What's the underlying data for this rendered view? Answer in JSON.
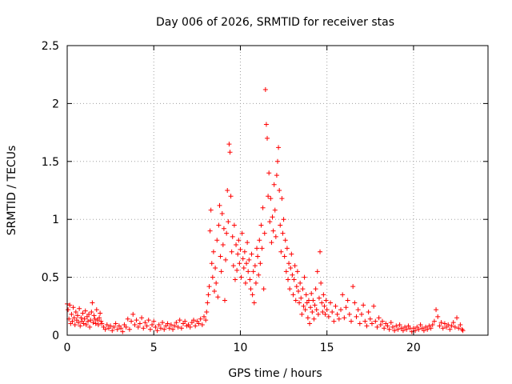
{
  "chart_data": {
    "type": "scatter",
    "title": "Day 006 of 2026, SRMTID for receiver stas",
    "xlabel": "GPS time / hours",
    "ylabel": "SRMTID / TECUs",
    "xlim": [
      0,
      24.3
    ],
    "ylim": [
      0,
      2.5
    ],
    "x_ticks": [
      0,
      5,
      10,
      15,
      20
    ],
    "x_tick_labels": [
      "0",
      "5",
      "10",
      "15",
      "20"
    ],
    "y_ticks": [
      0,
      0.5,
      1,
      1.5,
      2,
      2.5
    ],
    "y_tick_labels": [
      "0",
      "0.5",
      "1",
      "1.5",
      "2",
      "2.5"
    ],
    "grid": true,
    "marker": "+",
    "series": [
      {
        "name": "SRMTID",
        "color": "#ff0000",
        "points": [
          [
            0.0,
            0.27
          ],
          [
            0.05,
            0.22
          ],
          [
            0.1,
            0.14
          ],
          [
            0.15,
            0.26
          ],
          [
            0.2,
            0.1
          ],
          [
            0.25,
            0.18
          ],
          [
            0.3,
            0.12
          ],
          [
            0.35,
            0.24
          ],
          [
            0.4,
            0.15
          ],
          [
            0.45,
            0.09
          ],
          [
            0.5,
            0.2
          ],
          [
            0.55,
            0.13
          ],
          [
            0.6,
            0.17
          ],
          [
            0.65,
            0.11
          ],
          [
            0.7,
            0.23
          ],
          [
            0.75,
            0.08
          ],
          [
            0.8,
            0.15
          ],
          [
            0.85,
            0.12
          ],
          [
            0.9,
            0.19
          ],
          [
            0.95,
            0.1
          ],
          [
            1.0,
            0.14
          ],
          [
            1.05,
            0.21
          ],
          [
            1.1,
            0.09
          ],
          [
            1.15,
            0.16
          ],
          [
            1.2,
            0.12
          ],
          [
            1.25,
            0.18
          ],
          [
            1.3,
            0.07
          ],
          [
            1.35,
            0.13
          ],
          [
            1.4,
            0.2
          ],
          [
            1.45,
            0.28
          ],
          [
            1.5,
            0.11
          ],
          [
            1.55,
            0.17
          ],
          [
            1.6,
            0.14
          ],
          [
            1.65,
            0.1
          ],
          [
            1.7,
            0.22
          ],
          [
            1.75,
            0.13
          ],
          [
            1.8,
            0.09
          ],
          [
            1.85,
            0.15
          ],
          [
            1.9,
            0.19
          ],
          [
            1.95,
            0.12
          ],
          [
            2.0,
            0.1
          ],
          [
            2.1,
            0.07
          ],
          [
            2.2,
            0.05
          ],
          [
            2.3,
            0.09
          ],
          [
            2.4,
            0.06
          ],
          [
            2.5,
            0.08
          ],
          [
            2.6,
            0.04
          ],
          [
            2.7,
            0.07
          ],
          [
            2.8,
            0.1
          ],
          [
            2.9,
            0.05
          ],
          [
            3.0,
            0.08
          ],
          [
            3.1,
            0.06
          ],
          [
            3.2,
            0.03
          ],
          [
            3.3,
            0.09
          ],
          [
            3.4,
            0.07
          ],
          [
            3.5,
            0.14
          ],
          [
            3.6,
            0.05
          ],
          [
            3.7,
            0.12
          ],
          [
            3.8,
            0.18
          ],
          [
            3.9,
            0.09
          ],
          [
            4.0,
            0.13
          ],
          [
            4.1,
            0.07
          ],
          [
            4.2,
            0.1
          ],
          [
            4.3,
            0.15
          ],
          [
            4.4,
            0.06
          ],
          [
            4.5,
            0.11
          ],
          [
            4.6,
            0.08
          ],
          [
            4.7,
            0.13
          ],
          [
            4.8,
            0.05
          ],
          [
            4.9,
            0.09
          ],
          [
            5.0,
            0.12
          ],
          [
            5.1,
            0.07
          ],
          [
            5.2,
            0.04
          ],
          [
            5.3,
            0.09
          ],
          [
            5.4,
            0.06
          ],
          [
            5.5,
            0.11
          ],
          [
            5.6,
            0.05
          ],
          [
            5.7,
            0.08
          ],
          [
            5.8,
            0.1
          ],
          [
            5.9,
            0.06
          ],
          [
            6.0,
            0.09
          ],
          [
            6.1,
            0.05
          ],
          [
            6.2,
            0.08
          ],
          [
            6.3,
            0.11
          ],
          [
            6.4,
            0.07
          ],
          [
            6.5,
            0.13
          ],
          [
            6.6,
            0.06
          ],
          [
            6.7,
            0.1
          ],
          [
            6.8,
            0.12
          ],
          [
            6.9,
            0.08
          ],
          [
            7.0,
            0.09
          ],
          [
            7.1,
            0.07
          ],
          [
            7.2,
            0.11
          ],
          [
            7.3,
            0.13
          ],
          [
            7.4,
            0.08
          ],
          [
            7.5,
            0.12
          ],
          [
            7.6,
            0.1
          ],
          [
            7.7,
            0.14
          ],
          [
            7.8,
            0.09
          ],
          [
            7.9,
            0.16
          ],
          [
            8.0,
            0.13
          ],
          [
            8.05,
            0.2
          ],
          [
            8.1,
            0.28
          ],
          [
            8.15,
            0.35
          ],
          [
            8.2,
            0.42
          ],
          [
            8.25,
            0.9
          ],
          [
            8.3,
            1.08
          ],
          [
            8.35,
            0.62
          ],
          [
            8.4,
            0.5
          ],
          [
            8.45,
            0.72
          ],
          [
            8.5,
            0.38
          ],
          [
            8.55,
            0.58
          ],
          [
            8.6,
            0.45
          ],
          [
            8.65,
            0.82
          ],
          [
            8.7,
            0.33
          ],
          [
            8.75,
            0.95
          ],
          [
            8.8,
            1.12
          ],
          [
            8.85,
            0.68
          ],
          [
            8.9,
            0.55
          ],
          [
            8.95,
            1.05
          ],
          [
            9.0,
            0.78
          ],
          [
            9.05,
            0.92
          ],
          [
            9.1,
            0.3
          ],
          [
            9.15,
            0.65
          ],
          [
            9.2,
            0.88
          ],
          [
            9.25,
            1.25
          ],
          [
            9.3,
            0.98
          ],
          [
            9.35,
            1.65
          ],
          [
            9.4,
            1.58
          ],
          [
            9.45,
            1.2
          ],
          [
            9.5,
            0.72
          ],
          [
            9.55,
            0.85
          ],
          [
            9.6,
            0.6
          ],
          [
            9.65,
            0.95
          ],
          [
            9.7,
            0.48
          ],
          [
            9.75,
            0.78
          ],
          [
            9.8,
            0.56
          ],
          [
            9.85,
            0.7
          ],
          [
            9.9,
            0.82
          ],
          [
            9.95,
            0.62
          ],
          [
            10.0,
            0.74
          ],
          [
            10.05,
            0.5
          ],
          [
            10.1,
            0.88
          ],
          [
            10.15,
            0.66
          ],
          [
            10.2,
            0.58
          ],
          [
            10.25,
            0.72
          ],
          [
            10.3,
            0.45
          ],
          [
            10.35,
            0.62
          ],
          [
            10.4,
            0.8
          ],
          [
            10.45,
            0.55
          ],
          [
            10.5,
            0.65
          ],
          [
            10.55,
            0.48
          ],
          [
            10.6,
            0.4
          ],
          [
            10.65,
            0.7
          ],
          [
            10.7,
            0.35
          ],
          [
            10.75,
            0.55
          ],
          [
            10.8,
            0.28
          ],
          [
            10.85,
            0.6
          ],
          [
            10.9,
            0.45
          ],
          [
            10.95,
            0.75
          ],
          [
            11.0,
            0.68
          ],
          [
            11.05,
            0.52
          ],
          [
            11.1,
            0.82
          ],
          [
            11.15,
            0.62
          ],
          [
            11.2,
            0.95
          ],
          [
            11.25,
            0.75
          ],
          [
            11.3,
            1.1
          ],
          [
            11.35,
            0.4
          ],
          [
            11.4,
            0.88
          ],
          [
            11.45,
            2.12
          ],
          [
            11.5,
            1.82
          ],
          [
            11.55,
            1.7
          ],
          [
            11.6,
            1.2
          ],
          [
            11.65,
            1.4
          ],
          [
            11.7,
            0.98
          ],
          [
            11.75,
            1.18
          ],
          [
            11.8,
            0.8
          ],
          [
            11.85,
            1.02
          ],
          [
            11.9,
            0.9
          ],
          [
            11.95,
            1.3
          ],
          [
            12.0,
            1.08
          ],
          [
            12.05,
            0.85
          ],
          [
            12.1,
            1.38
          ],
          [
            12.15,
            1.5
          ],
          [
            12.2,
            1.62
          ],
          [
            12.25,
            1.25
          ],
          [
            12.3,
            0.95
          ],
          [
            12.35,
            0.72
          ],
          [
            12.4,
            1.18
          ],
          [
            12.45,
            0.88
          ],
          [
            12.5,
            1.0
          ],
          [
            12.55,
            0.68
          ],
          [
            12.6,
            0.82
          ],
          [
            12.65,
            0.55
          ],
          [
            12.7,
            0.75
          ],
          [
            12.75,
            0.48
          ],
          [
            12.8,
            0.62
          ],
          [
            12.85,
            0.4
          ],
          [
            12.9,
            0.58
          ],
          [
            12.95,
            0.7
          ],
          [
            13.0,
            0.52
          ],
          [
            13.05,
            0.35
          ],
          [
            13.1,
            0.48
          ],
          [
            13.15,
            0.6
          ],
          [
            13.2,
            0.3
          ],
          [
            13.25,
            0.42
          ],
          [
            13.3,
            0.55
          ],
          [
            13.35,
            0.38
          ],
          [
            13.4,
            0.28
          ],
          [
            13.45,
            0.45
          ],
          [
            13.5,
            0.32
          ],
          [
            13.55,
            0.18
          ],
          [
            13.6,
            0.4
          ],
          [
            13.65,
            0.25
          ],
          [
            13.7,
            0.5
          ],
          [
            13.75,
            0.22
          ],
          [
            13.8,
            0.35
          ],
          [
            13.85,
            0.28
          ],
          [
            13.9,
            0.15
          ],
          [
            13.95,
            0.3
          ],
          [
            14.0,
            0.1
          ],
          [
            14.05,
            0.24
          ],
          [
            14.1,
            0.36
          ],
          [
            14.15,
            0.2
          ],
          [
            14.2,
            0.3
          ],
          [
            14.25,
            0.14
          ],
          [
            14.3,
            0.26
          ],
          [
            14.35,
            0.4
          ],
          [
            14.4,
            0.22
          ],
          [
            14.45,
            0.55
          ],
          [
            14.5,
            0.18
          ],
          [
            14.55,
            0.32
          ],
          [
            14.6,
            0.72
          ],
          [
            14.65,
            0.45
          ],
          [
            14.7,
            0.28
          ],
          [
            14.75,
            0.2
          ],
          [
            14.8,
            0.35
          ],
          [
            14.85,
            0.25
          ],
          [
            14.9,
            0.18
          ],
          [
            14.95,
            0.3
          ],
          [
            15.0,
            0.22
          ],
          [
            15.1,
            0.16
          ],
          [
            15.2,
            0.28
          ],
          [
            15.3,
            0.2
          ],
          [
            15.4,
            0.12
          ],
          [
            15.5,
            0.25
          ],
          [
            15.6,
            0.18
          ],
          [
            15.7,
            0.14
          ],
          [
            15.8,
            0.22
          ],
          [
            15.9,
            0.35
          ],
          [
            16.0,
            0.15
          ],
          [
            16.1,
            0.24
          ],
          [
            16.2,
            0.3
          ],
          [
            16.3,
            0.18
          ],
          [
            16.4,
            0.12
          ],
          [
            16.5,
            0.42
          ],
          [
            16.6,
            0.28
          ],
          [
            16.7,
            0.16
          ],
          [
            16.8,
            0.22
          ],
          [
            16.9,
            0.1
          ],
          [
            17.0,
            0.18
          ],
          [
            17.1,
            0.26
          ],
          [
            17.2,
            0.12
          ],
          [
            17.3,
            0.08
          ],
          [
            17.4,
            0.2
          ],
          [
            17.5,
            0.14
          ],
          [
            17.6,
            0.1
          ],
          [
            17.7,
            0.25
          ],
          [
            17.8,
            0.12
          ],
          [
            17.9,
            0.07
          ],
          [
            18.0,
            0.15
          ],
          [
            18.1,
            0.09
          ],
          [
            18.2,
            0.12
          ],
          [
            18.3,
            0.06
          ],
          [
            18.4,
            0.1
          ],
          [
            18.5,
            0.08
          ],
          [
            18.6,
            0.05
          ],
          [
            18.7,
            0.11
          ],
          [
            18.8,
            0.07
          ],
          [
            18.9,
            0.04
          ],
          [
            19.0,
            0.08
          ],
          [
            19.1,
            0.05
          ],
          [
            19.2,
            0.09
          ],
          [
            19.3,
            0.06
          ],
          [
            19.4,
            0.04
          ],
          [
            19.5,
            0.07
          ],
          [
            19.6,
            0.05
          ],
          [
            19.7,
            0.08
          ],
          [
            19.8,
            0.06
          ],
          [
            19.9,
            0.03
          ],
          [
            20.0,
            0.06
          ],
          [
            20.1,
            0.04
          ],
          [
            20.2,
            0.07
          ],
          [
            20.3,
            0.05
          ],
          [
            20.4,
            0.09
          ],
          [
            20.5,
            0.06
          ],
          [
            20.6,
            0.04
          ],
          [
            20.7,
            0.07
          ],
          [
            20.8,
            0.05
          ],
          [
            20.9,
            0.08
          ],
          [
            21.0,
            0.06
          ],
          [
            21.1,
            0.09
          ],
          [
            21.2,
            0.12
          ],
          [
            21.3,
            0.22
          ],
          [
            21.4,
            0.16
          ],
          [
            21.5,
            0.08
          ],
          [
            21.6,
            0.11
          ],
          [
            21.7,
            0.06
          ],
          [
            21.8,
            0.1
          ],
          [
            21.9,
            0.07
          ],
          [
            22.0,
            0.09
          ],
          [
            22.1,
            0.05
          ],
          [
            22.2,
            0.08
          ],
          [
            22.3,
            0.11
          ],
          [
            22.4,
            0.07
          ],
          [
            22.5,
            0.15
          ],
          [
            22.6,
            0.06
          ],
          [
            22.7,
            0.09
          ],
          [
            22.8,
            0.05
          ],
          [
            22.85,
            0.04
          ]
        ]
      }
    ]
  }
}
